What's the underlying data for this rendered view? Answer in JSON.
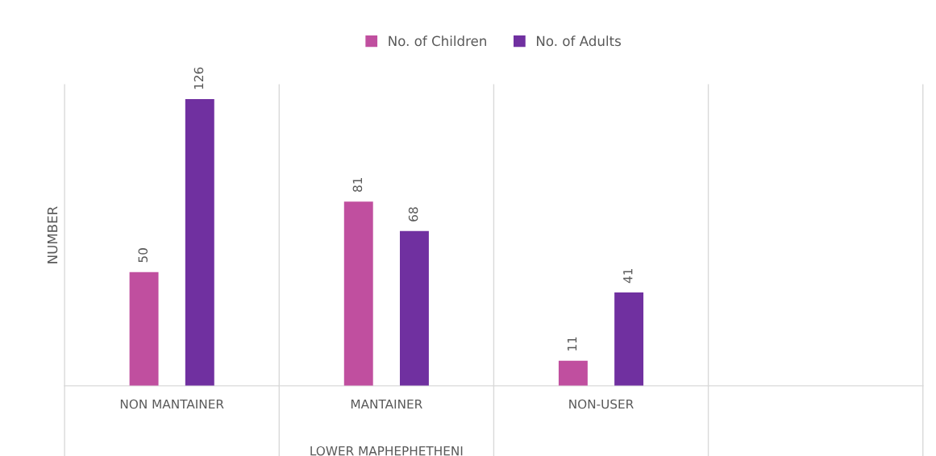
{
  "chart_data": {
    "type": "bar",
    "categories": [
      "NON MANTAINER",
      "MANTAINER",
      "NON-USER",
      null
    ],
    "series": [
      {
        "name": "No. of Children",
        "color": "#c04f9f",
        "values": [
          50,
          81,
          11,
          null
        ]
      },
      {
        "name": "No. of Adults",
        "color": "#7030a0",
        "values": [
          126,
          68,
          41,
          null
        ]
      }
    ],
    "ylabel": "NUMBER",
    "annotations": [
      "LOWER MAPHEPHETHENI"
    ],
    "data_labels": true,
    "grid": "x",
    "legend": "top",
    "tick_labels": "x"
  }
}
